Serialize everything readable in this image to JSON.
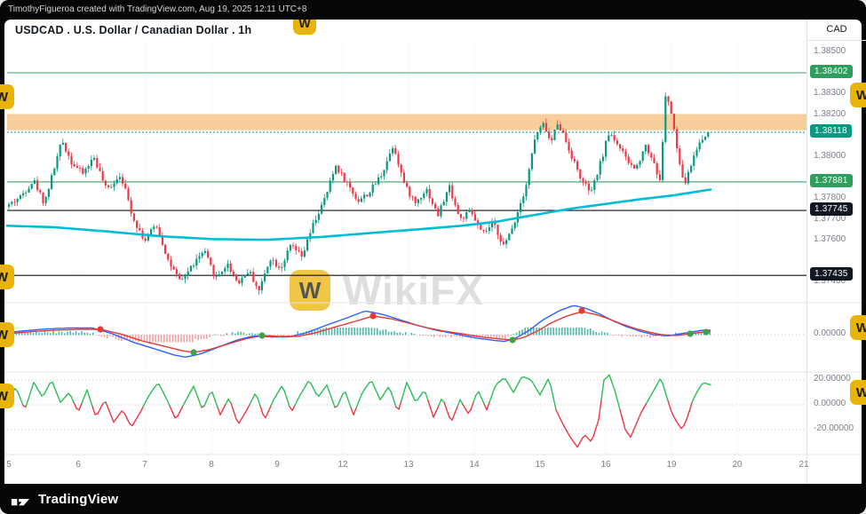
{
  "meta": {
    "attribution": "TimothyFigueroa created with TradingView.com, Aug 19, 2025 12:11 UTC+8",
    "brand": "TradingView",
    "watermark": "WikiFX",
    "watermark_initial": "W"
  },
  "header": {
    "symbol_title": "USDCAD . U.S. Dollar / Canadian Dollar . 1h",
    "axis_currency": "CAD"
  },
  "chart_data": {
    "type": "candlestick",
    "symbol": "USDCAD",
    "interval": "1h",
    "seed": 42,
    "candle_up_color": "#089981",
    "candle_down_color": "#f23645",
    "price_axis_labels": [
      "1.38500",
      "1.38300",
      "1.38200",
      "1.38000",
      "1.37800",
      "1.37700",
      "1.37600",
      "1.37400"
    ],
    "time_axis_labels": [
      "5",
      "6",
      "7",
      "8",
      "9",
      "12",
      "13",
      "14",
      "15",
      "16",
      "19",
      "20",
      "21"
    ],
    "key_levels": [
      {
        "price": 1.38402,
        "type": "resistance",
        "color": "#3ba368",
        "badge": "1.38402",
        "badge_color": "#2e9e5e"
      },
      {
        "price": 1.37881,
        "type": "support",
        "color": "#3ba368",
        "badge": "1.37881",
        "badge_color": "#2e9e5e"
      },
      {
        "price": 1.37745,
        "type": "level",
        "color": "#111111",
        "badge": "1.37745",
        "badge_color": "#131722"
      },
      {
        "price": 1.37435,
        "type": "level",
        "color": "#111111",
        "badge": "1.37435",
        "badge_color": "#131722"
      }
    ],
    "last_price": {
      "value": 1.38118,
      "badge": "1.38118",
      "color": "#089981"
    },
    "supply_zone": {
      "top": 1.38205,
      "bottom": 1.38128,
      "color": "#f2a64a",
      "opacity": 0.55
    },
    "price_path": [
      [
        8,
        1.3776
      ],
      [
        25,
        1.3781
      ],
      [
        40,
        1.3789
      ],
      [
        52,
        1.3778
      ],
      [
        62,
        1.3793
      ],
      [
        72,
        1.3808
      ],
      [
        82,
        1.3798
      ],
      [
        95,
        1.3792
      ],
      [
        108,
        1.38
      ],
      [
        122,
        1.3784
      ],
      [
        138,
        1.3792
      ],
      [
        152,
        1.3771
      ],
      [
        165,
        1.376
      ],
      [
        178,
        1.3768
      ],
      [
        192,
        1.375
      ],
      [
        205,
        1.374
      ],
      [
        218,
        1.3748
      ],
      [
        232,
        1.3755
      ],
      [
        245,
        1.3742
      ],
      [
        258,
        1.3749
      ],
      [
        270,
        1.374
      ],
      [
        282,
        1.3746
      ],
      [
        294,
        1.3736
      ],
      [
        306,
        1.3752
      ],
      [
        318,
        1.3747
      ],
      [
        330,
        1.3758
      ],
      [
        342,
        1.3752
      ],
      [
        355,
        1.3768
      ],
      [
        368,
        1.378
      ],
      [
        380,
        1.3796
      ],
      [
        392,
        1.3788
      ],
      [
        405,
        1.3779
      ],
      [
        418,
        1.3783
      ],
      [
        432,
        1.3792
      ],
      [
        445,
        1.3806
      ],
      [
        458,
        1.3786
      ],
      [
        470,
        1.3778
      ],
      [
        482,
        1.3785
      ],
      [
        495,
        1.3772
      ],
      [
        508,
        1.3786
      ],
      [
        520,
        1.377
      ],
      [
        532,
        1.3774
      ],
      [
        545,
        1.3763
      ],
      [
        558,
        1.3768
      ],
      [
        570,
        1.3757
      ],
      [
        582,
        1.377
      ],
      [
        594,
        1.3786
      ],
      [
        605,
        1.381
      ],
      [
        615,
        1.3816
      ],
      [
        622,
        1.3806
      ],
      [
        630,
        1.3817
      ],
      [
        638,
        1.3809
      ],
      [
        648,
        1.3798
      ],
      [
        658,
        1.3788
      ],
      [
        668,
        1.3783
      ],
      [
        678,
        1.3797
      ],
      [
        688,
        1.3812
      ],
      [
        698,
        1.3806
      ],
      [
        708,
        1.3798
      ],
      [
        718,
        1.3794
      ],
      [
        728,
        1.3806
      ],
      [
        738,
        1.3798
      ],
      [
        745,
        1.3788
      ],
      [
        752,
        1.3832
      ],
      [
        758,
        1.382
      ],
      [
        765,
        1.3802
      ],
      [
        772,
        1.3786
      ],
      [
        780,
        1.3796
      ],
      [
        788,
        1.3806
      ],
      [
        800,
        1.38118
      ]
    ],
    "ma_line": {
      "color": "#00bcd4",
      "points": [
        [
          8,
          1.37672
        ],
        [
          60,
          1.37665
        ],
        [
          120,
          1.37645
        ],
        [
          180,
          1.37622
        ],
        [
          240,
          1.37608
        ],
        [
          300,
          1.37605
        ],
        [
          360,
          1.37618
        ],
        [
          420,
          1.37638
        ],
        [
          480,
          1.37658
        ],
        [
          520,
          1.37672
        ],
        [
          560,
          1.37692
        ],
        [
          600,
          1.37722
        ],
        [
          640,
          1.37752
        ],
        [
          680,
          1.37775
        ],
        [
          720,
          1.37798
        ],
        [
          760,
          1.37818
        ],
        [
          800,
          1.37845
        ]
      ]
    },
    "macd_panel": {
      "zero_label": "0.00000",
      "signal": [
        [
          8,
          1
        ],
        [
          30,
          3
        ],
        [
          60,
          5
        ],
        [
          90,
          6
        ],
        [
          113,
          6
        ],
        [
          135,
          1
        ],
        [
          160,
          -7
        ],
        [
          185,
          -13
        ],
        [
          205,
          -18
        ],
        [
          218,
          -20
        ],
        [
          235,
          -17
        ],
        [
          255,
          -11
        ],
        [
          275,
          -5
        ],
        [
          295,
          -1
        ],
        [
          315,
          -2
        ],
        [
          335,
          -2
        ],
        [
          355,
          2
        ],
        [
          375,
          8
        ],
        [
          400,
          15
        ],
        [
          420,
          21
        ],
        [
          440,
          18
        ],
        [
          460,
          13
        ],
        [
          480,
          8
        ],
        [
          500,
          4
        ],
        [
          520,
          1
        ],
        [
          545,
          -3
        ],
        [
          565,
          -5
        ],
        [
          577,
          -6
        ],
        [
          590,
          -3
        ],
        [
          605,
          4
        ],
        [
          620,
          13
        ],
        [
          638,
          21
        ],
        [
          655,
          26
        ],
        [
          670,
          23
        ],
        [
          685,
          18
        ],
        [
          700,
          12
        ],
        [
          715,
          7
        ],
        [
          730,
          3
        ],
        [
          745,
          0
        ],
        [
          762,
          -1
        ],
        [
          777,
          1
        ],
        [
          800,
          4
        ]
      ],
      "dots": [
        [
          10,
          -1,
          "g"
        ],
        [
          113,
          6,
          "r"
        ],
        [
          218,
          -20,
          "g"
        ],
        [
          295,
          -1,
          "g"
        ],
        [
          420,
          21,
          "r"
        ],
        [
          577,
          -6,
          "g"
        ],
        [
          655,
          27,
          "r"
        ],
        [
          777,
          1,
          "g"
        ],
        [
          795,
          3,
          "g"
        ]
      ]
    },
    "oscillator_panel": {
      "labels": [
        "20.00000",
        "0.00000",
        "-20.00000"
      ],
      "levels": [
        20,
        0,
        -20
      ],
      "points": [
        [
          8,
          4
        ],
        [
          18,
          14
        ],
        [
          28,
          -4
        ],
        [
          38,
          18
        ],
        [
          48,
          6
        ],
        [
          58,
          20
        ],
        [
          68,
          2
        ],
        [
          78,
          10
        ],
        [
          88,
          -6
        ],
        [
          98,
          12
        ],
        [
          108,
          -10
        ],
        [
          118,
          4
        ],
        [
          128,
          -14
        ],
        [
          138,
          -4
        ],
        [
          148,
          -18
        ],
        [
          158,
          -6
        ],
        [
          168,
          8
        ],
        [
          178,
          18
        ],
        [
          188,
          4
        ],
        [
          198,
          -12
        ],
        [
          208,
          2
        ],
        [
          218,
          15
        ],
        [
          228,
          -4
        ],
        [
          238,
          12
        ],
        [
          248,
          -8
        ],
        [
          258,
          6
        ],
        [
          268,
          -16
        ],
        [
          278,
          -4
        ],
        [
          288,
          10
        ],
        [
          298,
          -12
        ],
        [
          308,
          4
        ],
        [
          318,
          16
        ],
        [
          328,
          -6
        ],
        [
          338,
          8
        ],
        [
          348,
          20
        ],
        [
          358,
          6
        ],
        [
          368,
          16
        ],
        [
          378,
          -4
        ],
        [
          388,
          12
        ],
        [
          398,
          -8
        ],
        [
          408,
          10
        ],
        [
          418,
          20
        ],
        [
          428,
          4
        ],
        [
          438,
          15
        ],
        [
          448,
          -6
        ],
        [
          458,
          18
        ],
        [
          468,
          2
        ],
        [
          478,
          12
        ],
        [
          488,
          -10
        ],
        [
          498,
          6
        ],
        [
          508,
          -14
        ],
        [
          518,
          4
        ],
        [
          528,
          -8
        ],
        [
          538,
          12
        ],
        [
          548,
          -4
        ],
        [
          558,
          16
        ],
        [
          568,
          22
        ],
        [
          578,
          10
        ],
        [
          588,
          23
        ],
        [
          598,
          20
        ],
        [
          608,
          8
        ],
        [
          618,
          22
        ],
        [
          626,
          -4
        ],
        [
          634,
          -16
        ],
        [
          642,
          -26
        ],
        [
          650,
          -34
        ],
        [
          658,
          -24
        ],
        [
          666,
          -30
        ],
        [
          674,
          -12
        ],
        [
          680,
          20
        ],
        [
          686,
          24
        ],
        [
          692,
          12
        ],
        [
          698,
          -4
        ],
        [
          704,
          -20
        ],
        [
          710,
          -26
        ],
        [
          716,
          -16
        ],
        [
          722,
          -6
        ],
        [
          730,
          4
        ],
        [
          738,
          14
        ],
        [
          744,
          22
        ],
        [
          750,
          8
        ],
        [
          756,
          -6
        ],
        [
          762,
          -14
        ],
        [
          768,
          -20
        ],
        [
          774,
          -10
        ],
        [
          780,
          4
        ],
        [
          786,
          12
        ],
        [
          792,
          18
        ],
        [
          800,
          16
        ]
      ]
    }
  }
}
